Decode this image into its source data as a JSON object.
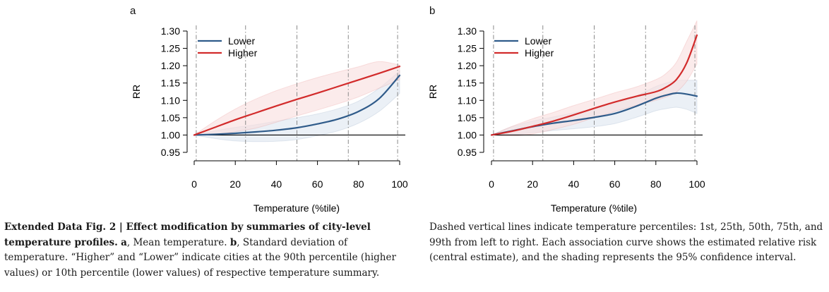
{
  "chart_data": [
    {
      "type": "line",
      "panel_label": "a",
      "xlabel": "Temperature (%tile)",
      "ylabel": "RR",
      "xlim": [
        0,
        100
      ],
      "ylim": [
        0.95,
        1.3
      ],
      "xticks": [
        "0",
        "20",
        "40",
        "60",
        "80",
        "100"
      ],
      "yticks": [
        "0.95",
        "1.00",
        "1.05",
        "1.10",
        "1.15",
        "1.20",
        "1.25",
        "1.30"
      ],
      "reference_line": 1.0,
      "vlines": [
        1,
        25,
        50,
        75,
        99
      ],
      "legend_position": "top-left",
      "x": [
        0,
        10,
        20,
        30,
        40,
        50,
        60,
        70,
        80,
        90,
        100
      ],
      "series": [
        {
          "name": "Lower",
          "color": "#2f5b8a",
          "band_color": "#dde6f0",
          "values": [
            1.0,
            1.002,
            1.005,
            1.009,
            1.014,
            1.021,
            1.032,
            1.046,
            1.068,
            1.105,
            1.172
          ],
          "lower": [
            1.0,
            0.99,
            0.983,
            0.981,
            0.982,
            0.987,
            0.998,
            1.012,
            1.034,
            1.068,
            1.12
          ],
          "upper": [
            1.0,
            1.012,
            1.022,
            1.03,
            1.04,
            1.05,
            1.061,
            1.076,
            1.098,
            1.135,
            1.185
          ]
        },
        {
          "name": "Higher",
          "color": "#d22b2b",
          "band_color": "#f9dede",
          "values": [
            1.0,
            1.022,
            1.044,
            1.064,
            1.084,
            1.103,
            1.121,
            1.14,
            1.159,
            1.178,
            1.198
          ],
          "lower": [
            1.0,
            1.0,
            1.01,
            1.02,
            1.037,
            1.055,
            1.072,
            1.09,
            1.11,
            1.135,
            1.16
          ],
          "upper": [
            1.0,
            1.04,
            1.075,
            1.104,
            1.128,
            1.148,
            1.166,
            1.182,
            1.197,
            1.212,
            1.202
          ]
        }
      ]
    },
    {
      "type": "line",
      "panel_label": "b",
      "xlabel": "Temperature (%tile)",
      "ylabel": "RR",
      "xlim": [
        0,
        100
      ],
      "ylim": [
        0.95,
        1.3
      ],
      "xticks": [
        "0",
        "20",
        "40",
        "60",
        "80",
        "100"
      ],
      "yticks": [
        "0.95",
        "1.00",
        "1.05",
        "1.10",
        "1.15",
        "1.20",
        "1.25",
        "1.30"
      ],
      "reference_line": 1.0,
      "vlines": [
        1,
        25,
        50,
        75,
        99
      ],
      "legend_position": "top-left",
      "x": [
        0,
        10,
        20,
        30,
        40,
        50,
        60,
        70,
        80,
        85,
        90,
        95,
        100
      ],
      "series": [
        {
          "name": "Lower",
          "color": "#2f5b8a",
          "band_color": "#dde6f0",
          "values": [
            1.0,
            1.012,
            1.024,
            1.034,
            1.042,
            1.051,
            1.062,
            1.082,
            1.106,
            1.115,
            1.121,
            1.118,
            1.112
          ],
          "lower": [
            1.0,
            1.0,
            1.007,
            1.013,
            1.018,
            1.024,
            1.033,
            1.05,
            1.07,
            1.076,
            1.08,
            1.074,
            1.062
          ],
          "upper": [
            1.0,
            1.024,
            1.04,
            1.052,
            1.064,
            1.076,
            1.09,
            1.112,
            1.14,
            1.15,
            1.157,
            1.158,
            1.158
          ]
        },
        {
          "name": "Higher",
          "color": "#d22b2b",
          "band_color": "#f9dede",
          "values": [
            1.0,
            1.011,
            1.025,
            1.04,
            1.058,
            1.077,
            1.095,
            1.111,
            1.125,
            1.138,
            1.16,
            1.208,
            1.288
          ],
          "lower": [
            1.0,
            0.997,
            1.003,
            1.016,
            1.031,
            1.05,
            1.068,
            1.085,
            1.1,
            1.11,
            1.124,
            1.155,
            1.205
          ],
          "upper": [
            1.0,
            1.025,
            1.047,
            1.065,
            1.085,
            1.103,
            1.122,
            1.138,
            1.16,
            1.178,
            1.21,
            1.27,
            1.33
          ]
        }
      ]
    }
  ],
  "caption_left": {
    "fig_label": "Extended Data Fig. 2 | Effect modification by summaries of city-level temperature profiles.",
    "panel_a": "a",
    "text_a": ", Mean temperature.",
    "panel_b": "b",
    "text_b": ", Standard deviation of temperature. “Higher” and “Lower” indicate cities at the 90th percentile (higher values) or 10th percentile (lower values) of respective temperature summary."
  },
  "caption_right": "Dashed vertical lines indicate temperature percentiles: 1st, 25th, 50th, 75th, and 99th from left to right. Each association curve shows the estimated relative risk (central estimate), and the shading represents the 95% confidence interval."
}
